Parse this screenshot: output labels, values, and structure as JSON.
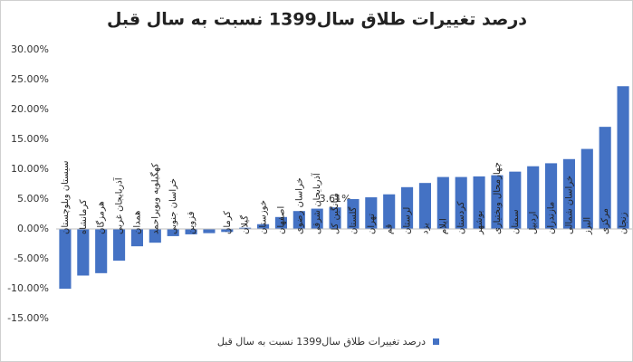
{
  "chart_data": {
    "type": "bar",
    "title": "درصد تغییرات طلاق سال1399 نسبت به سال قبل",
    "categories": [
      "سیستان وبلوچستان",
      "کرمانشاه",
      "هرمزگان",
      "آذربایجان غربی",
      "همدان",
      "کهگیلویه وبویراحمد",
      "خراسان جنوبی",
      "قزوین",
      null,
      "کرمان",
      "گیلان",
      "خوزستان",
      "اصفهان",
      "خراسان رضوی",
      "آذربایجان شرقی",
      "میانگین کل",
      "گلستان",
      "تهران",
      "قم",
      "لرستان",
      "یزد",
      "ایلام",
      "کردستان",
      "بوشهر",
      "چهارمحال وبختیاری",
      "سمنان",
      "اردبیل",
      "مازندران",
      "خراسان شمالی",
      "البرز",
      "مرکزی",
      "زنجان"
    ],
    "series": [
      {
        "name": "درصد تغییرات طلاق سال1399 نسبت به سال قبل",
        "color": "#4472c4",
        "values": [
          -10.0,
          -7.8,
          -7.4,
          -5.3,
          -2.9,
          -2.3,
          -1.2,
          -0.9,
          -0.7,
          -0.5,
          0.2,
          0.8,
          2.0,
          3.0,
          3.4,
          3.61,
          5.0,
          5.3,
          5.8,
          7.0,
          7.7,
          8.7,
          8.7,
          8.8,
          9.0,
          9.6,
          10.5,
          11.0,
          11.7,
          13.4,
          17.1,
          23.9
        ],
        "value_labels": [
          null,
          null,
          null,
          null,
          null,
          null,
          null,
          null,
          null,
          null,
          null,
          null,
          null,
          null,
          null,
          "3.61%",
          null,
          null,
          null,
          null,
          null,
          null,
          null,
          null,
          null,
          null,
          null,
          null,
          null,
          null,
          null,
          null
        ]
      }
    ],
    "ylim": [
      -15,
      30
    ],
    "yticks": [
      {
        "value": -15,
        "label": "-15.00%"
      },
      {
        "value": -10,
        "label": "-10.00%"
      },
      {
        "value": -5,
        "label": "-5.00%"
      },
      {
        "value": 0,
        "label": "0.00%"
      },
      {
        "value": 5,
        "label": "5.00%"
      },
      {
        "value": 10,
        "label": "10.00%"
      },
      {
        "value": 15,
        "label": "15.00%"
      },
      {
        "value": 20,
        "label": "20.00%"
      },
      {
        "value": 25,
        "label": "25.00%"
      },
      {
        "value": 30,
        "label": "30.00%"
      }
    ],
    "grid": false,
    "legend": "bottom"
  }
}
